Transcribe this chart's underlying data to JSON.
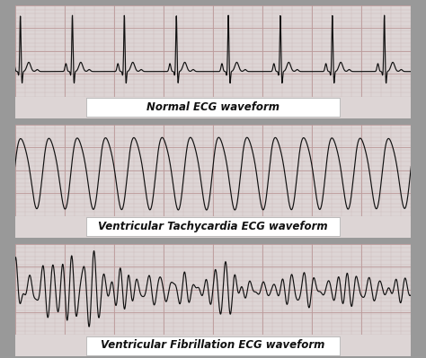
{
  "panel_labels": [
    "Normal ECG waveform",
    "Ventricular Tachycardia ECG waveform",
    "Ventricular Fibrillation ECG waveform"
  ],
  "grid_minor_color": "#ccbbbb",
  "grid_major_color": "#bb9999",
  "panel_bg": "#ddd5d5",
  "line_color": "#111111",
  "outer_bg": "#999999",
  "label_fontsize": 8.5,
  "n_points": 2000
}
